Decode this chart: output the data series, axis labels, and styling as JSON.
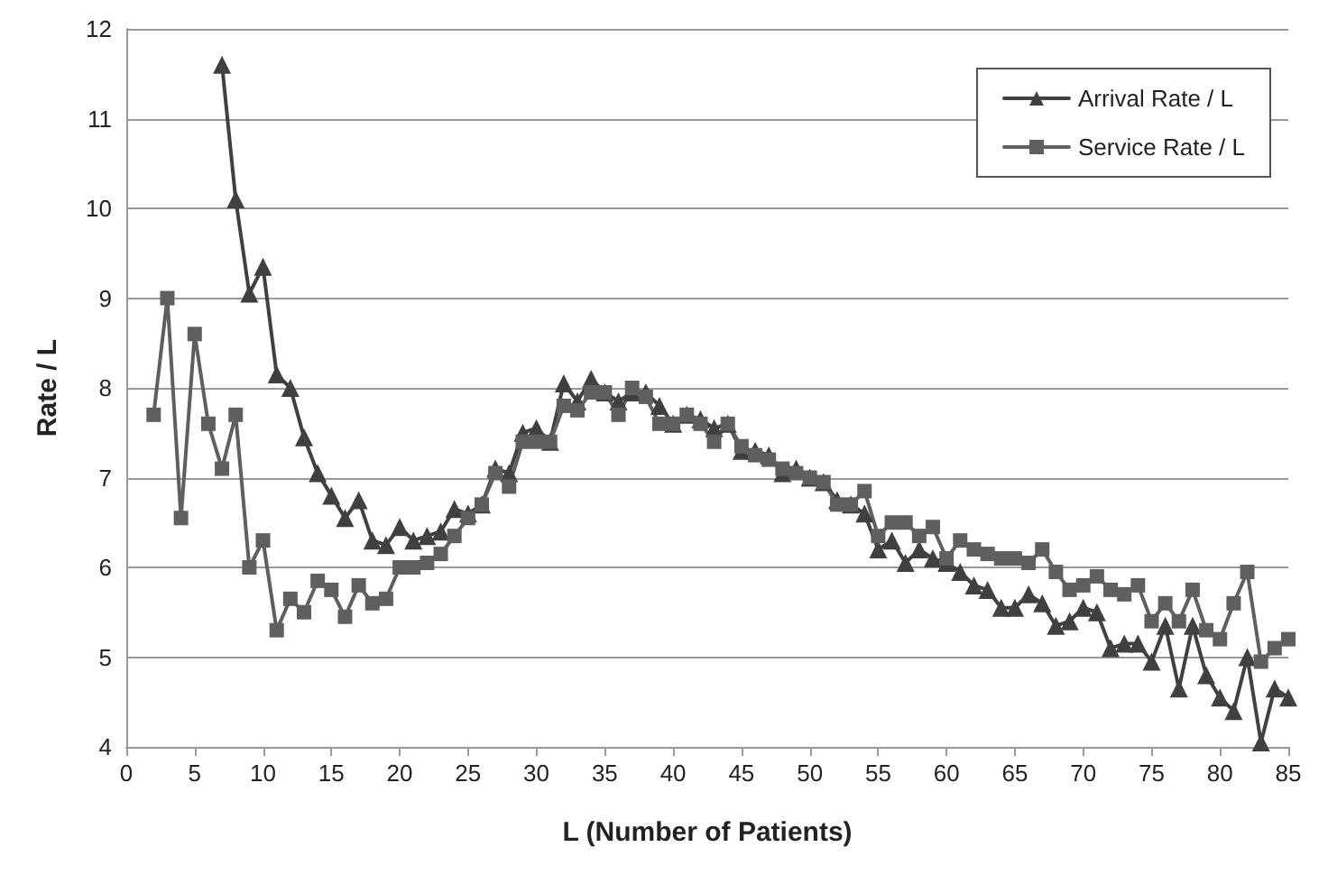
{
  "chart_data": {
    "type": "line",
    "xlabel": "L (Number of Patients)",
    "ylabel": "Rate / L",
    "x": [
      2,
      3,
      4,
      5,
      6,
      7,
      8,
      9,
      10,
      11,
      12,
      13,
      14,
      15,
      16,
      17,
      18,
      19,
      20,
      21,
      22,
      23,
      24,
      25,
      26,
      27,
      28,
      29,
      30,
      31,
      32,
      33,
      34,
      35,
      36,
      37,
      38,
      39,
      40,
      41,
      42,
      43,
      44,
      45,
      46,
      47,
      48,
      49,
      50,
      51,
      52,
      53,
      54,
      55,
      56,
      57,
      58,
      59,
      60,
      61,
      62,
      63,
      64,
      65,
      66,
      67,
      68,
      69,
      70,
      71,
      72,
      73,
      74,
      75,
      76,
      77,
      78,
      79,
      80,
      81,
      82,
      83,
      84,
      85
    ],
    "series": [
      {
        "name": "Arrival Rate / L",
        "color": "#404040",
        "marker": "triangle",
        "values": [
          null,
          null,
          null,
          null,
          null,
          11.6,
          10.1,
          9.05,
          9.35,
          8.15,
          8.0,
          7.45,
          7.05,
          6.8,
          6.55,
          6.75,
          6.3,
          6.25,
          6.45,
          6.3,
          6.35,
          6.4,
          6.65,
          6.6,
          6.7,
          7.1,
          7.05,
          7.5,
          7.55,
          7.4,
          8.05,
          7.85,
          8.1,
          7.95,
          7.85,
          7.95,
          7.95,
          7.8,
          7.6,
          7.7,
          7.65,
          7.55,
          7.6,
          7.3,
          7.3,
          7.25,
          7.05,
          7.1,
          7.0,
          6.95,
          6.75,
          6.7,
          6.6,
          6.2,
          6.3,
          6.05,
          6.2,
          6.1,
          6.05,
          5.95,
          5.8,
          5.75,
          5.55,
          5.55,
          5.7,
          5.6,
          5.35,
          5.4,
          5.55,
          5.5,
          5.1,
          5.15,
          5.15,
          4.95,
          5.35,
          4.65,
          5.35,
          4.8,
          4.55,
          4.4,
          5.0,
          4.05,
          4.65,
          4.55
        ]
      },
      {
        "name": "Service Rate / L",
        "color": "#5f5f5f",
        "marker": "square",
        "values": [
          7.7,
          9.0,
          6.55,
          8.6,
          7.6,
          7.1,
          7.7,
          6.0,
          6.3,
          5.3,
          5.65,
          5.5,
          5.85,
          5.75,
          5.45,
          5.8,
          5.6,
          5.65,
          6.0,
          6.0,
          6.05,
          6.15,
          6.35,
          6.55,
          6.7,
          7.05,
          6.9,
          7.4,
          7.4,
          7.4,
          7.8,
          7.75,
          7.95,
          7.95,
          7.7,
          8.0,
          7.9,
          7.6,
          7.6,
          7.7,
          7.6,
          7.4,
          7.6,
          7.35,
          7.25,
          7.2,
          7.1,
          7.05,
          7.0,
          6.95,
          6.7,
          6.7,
          6.85,
          6.35,
          6.5,
          6.5,
          6.35,
          6.45,
          6.1,
          6.3,
          6.2,
          6.15,
          6.1,
          6.1,
          6.05,
          6.2,
          5.95,
          5.75,
          5.8,
          5.9,
          5.75,
          5.7,
          5.8,
          5.4,
          5.6,
          5.4,
          5.75,
          5.3,
          5.2,
          5.6,
          5.95,
          4.95,
          5.1,
          5.2
        ]
      }
    ],
    "xlim": [
      0,
      85
    ],
    "xticks": [
      0,
      5,
      10,
      15,
      20,
      25,
      30,
      35,
      40,
      45,
      50,
      55,
      60,
      65,
      70,
      75,
      80,
      85
    ],
    "ylim": [
      4,
      12
    ],
    "yticks": [
      4,
      5,
      6,
      7,
      8,
      9,
      10,
      11,
      12
    ],
    "grid": "y",
    "legend": "top right",
    "line_style": "solid"
  }
}
